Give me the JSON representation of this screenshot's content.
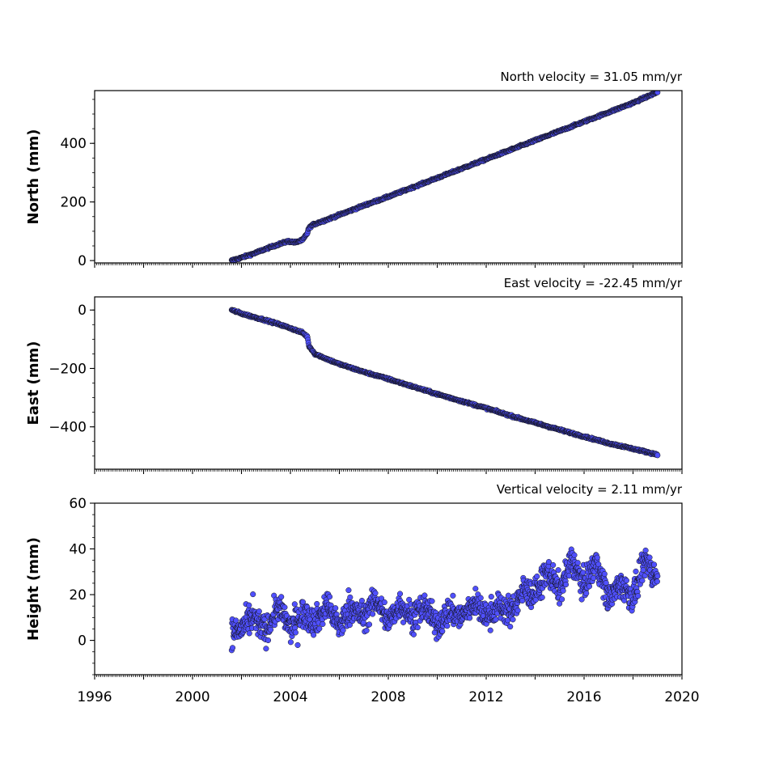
{
  "chart_data": [
    {
      "type": "scatter",
      "velocity_label": "North velocity = 31.05 mm/yr",
      "ylabel": "North (mm)",
      "ylim": [
        -8,
        580
      ],
      "yticks": [
        0,
        200,
        400
      ],
      "xlim": [
        1996,
        2020
      ],
      "marker_color": "#5050ff",
      "series": [
        {
          "x": [
            2001.6,
            2002.0,
            2002.5,
            2003.0,
            2003.5,
            2003.9,
            2004.2,
            2004.5,
            2004.7,
            2004.75,
            2004.9,
            2005.5,
            2006.0,
            2007.0,
            2008.0,
            2009.0,
            2010.0,
            2011.0,
            2012.0,
            2013.0,
            2014.0,
            2015.0,
            2016.0,
            2017.0,
            2018.0,
            2019.0
          ],
          "y": [
            0,
            10,
            24,
            40,
            55,
            66,
            62,
            70,
            95,
            110,
            122,
            140,
            156,
            188,
            218,
            250,
            282,
            314,
            346,
            378,
            410,
            442,
            474,
            506,
            538,
            575
          ]
        }
      ]
    },
    {
      "type": "scatter",
      "velocity_label": "East velocity = -22.45 mm/yr",
      "ylabel": "East (mm)",
      "ylim": [
        -545,
        45
      ],
      "yticks": [
        0,
        -200,
        -400
      ],
      "xlim": [
        1996,
        2020
      ],
      "marker_color": "#5050ff",
      "series": [
        {
          "x": [
            2001.6,
            2002.0,
            2002.5,
            2003.0,
            2003.5,
            2004.0,
            2004.5,
            2004.7,
            2004.75,
            2005.0,
            2005.5,
            2006.0,
            2007.0,
            2008.0,
            2009.0,
            2010.0,
            2011.0,
            2012.0,
            2013.0,
            2014.0,
            2015.0,
            2016.0,
            2017.0,
            2018.0,
            2019.0
          ],
          "y": [
            0,
            -12,
            -24,
            -35,
            -48,
            -62,
            -78,
            -92,
            -122,
            -150,
            -168,
            -185,
            -212,
            -236,
            -262,
            -288,
            -312,
            -336,
            -362,
            -386,
            -410,
            -433,
            -456,
            -475,
            -495
          ]
        }
      ]
    },
    {
      "type": "scatter",
      "velocity_label": "Vertical velocity = 2.11 mm/yr",
      "ylabel": "Height (mm)",
      "ylim": [
        -15,
        60
      ],
      "yticks": [
        0,
        20,
        40,
        60
      ],
      "xlim": [
        1996,
        2020
      ],
      "xticks": [
        1996,
        2000,
        2004,
        2008,
        2012,
        2016,
        2020
      ],
      "xtick_labels": [
        "1996",
        "2000",
        "2004",
        "2008",
        "2012",
        "2016",
        "2020"
      ],
      "marker_color": "#5050ff",
      "series": [
        {
          "x": [
            2001.6,
            2002.0,
            2002.5,
            2003.0,
            2003.5,
            2004.0,
            2004.5,
            2005.0,
            2005.5,
            2006.0,
            2006.5,
            2007.0,
            2007.5,
            2008.0,
            2008.5,
            2009.0,
            2009.5,
            2010.0,
            2010.5,
            2011.0,
            2011.5,
            2012.0,
            2012.5,
            2013.0,
            2013.5,
            2014.0,
            2014.5,
            2015.0,
            2015.5,
            2016.0,
            2016.5,
            2017.0,
            2017.5,
            2018.0,
            2018.5,
            2019.0
          ],
          "y": [
            3,
            5,
            10,
            4,
            15,
            5,
            12,
            8,
            15,
            6,
            14,
            10,
            18,
            8,
            16,
            10,
            15,
            6,
            13,
            10,
            17,
            10,
            15,
            12,
            22,
            20,
            30,
            22,
            35,
            24,
            35,
            18,
            25,
            18,
            35,
            27
          ]
        }
      ]
    }
  ]
}
